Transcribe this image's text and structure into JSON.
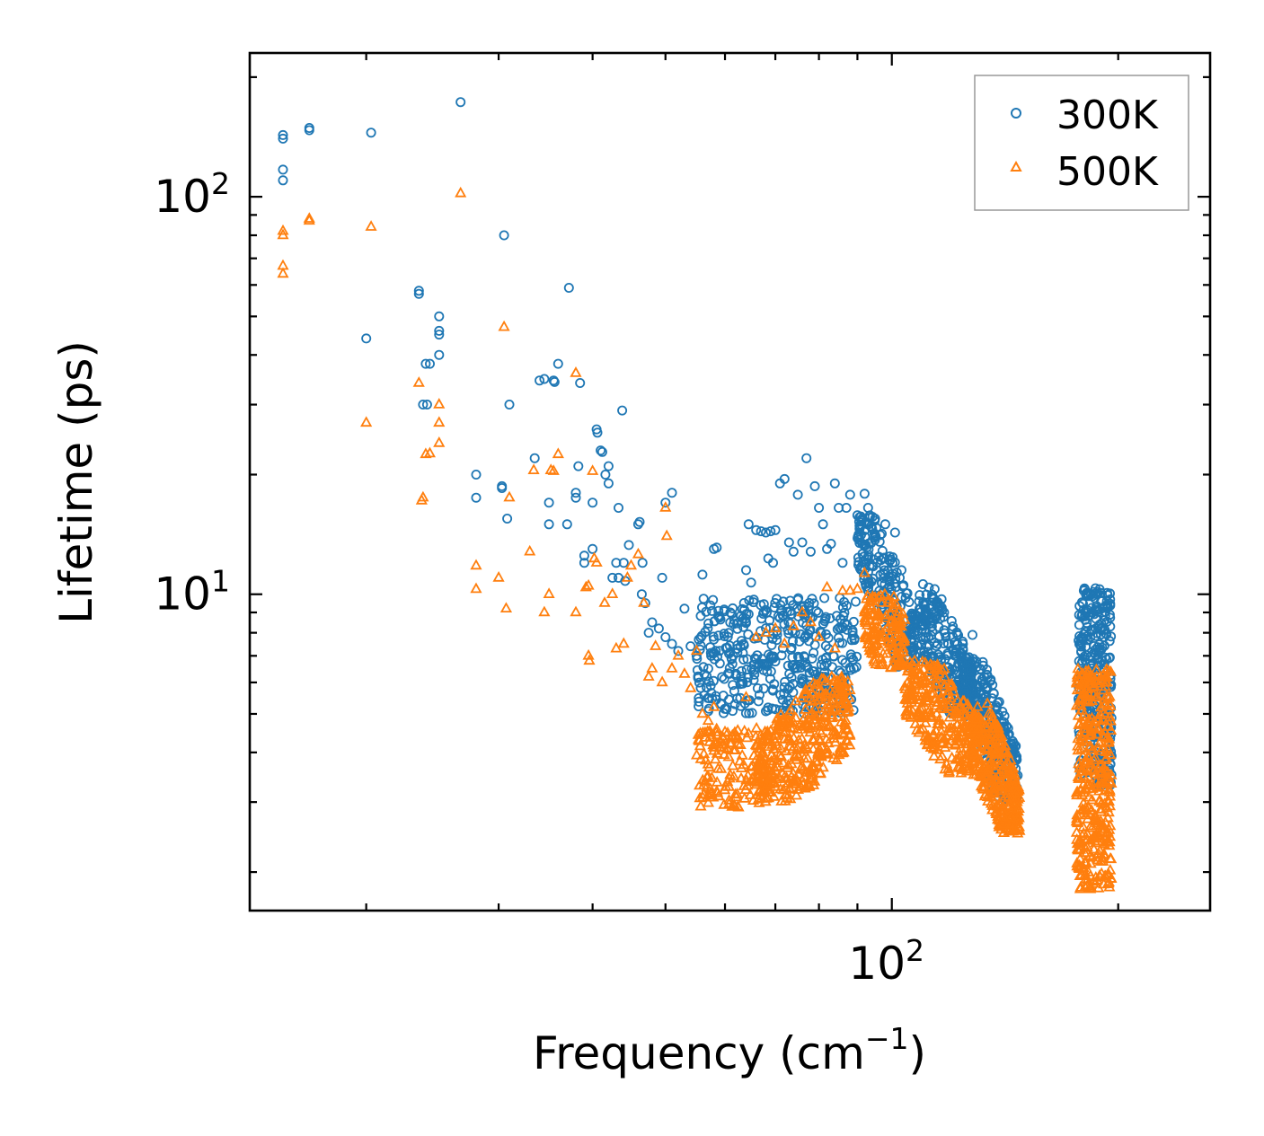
{
  "chart_data": {
    "type": "scatter",
    "xscale": "log",
    "yscale": "log",
    "xlim": [
      14,
      265
    ],
    "ylim": [
      1.6,
      230
    ],
    "xlabel_main": "Frequency (cm",
    "xlabel_sup": "−1",
    "xlabel_close": ")",
    "ylabel": "Lifetime (ps)",
    "x_major_ticks": [
      {
        "value": 100,
        "base": "10",
        "exp": "2"
      }
    ],
    "y_major_ticks": [
      {
        "value": 10,
        "base": "10",
        "exp": "1"
      },
      {
        "value": 100,
        "base": "10",
        "exp": "2"
      }
    ],
    "legend_position": "top-right",
    "series": [
      {
        "name": "300K",
        "marker": "circle",
        "color": "#1f77b4",
        "anchors": [
          [
            15.5,
            140
          ],
          [
            15.5,
            143
          ],
          [
            15.5,
            117
          ],
          [
            15.5,
            110
          ],
          [
            16.8,
            147
          ],
          [
            16.8,
            149
          ],
          [
            20,
            44
          ],
          [
            20.3,
            145
          ],
          [
            23.5,
            57
          ],
          [
            23.5,
            58
          ],
          [
            24,
            38
          ],
          [
            24.3,
            38
          ],
          [
            23.8,
            30
          ],
          [
            24.1,
            30
          ],
          [
            25,
            50
          ],
          [
            25,
            45
          ],
          [
            25,
            46
          ],
          [
            25,
            40
          ],
          [
            26.7,
            173
          ],
          [
            28,
            20
          ],
          [
            28,
            17.5
          ],
          [
            30.3,
            18.5
          ],
          [
            30.3,
            18.7
          ],
          [
            30.5,
            80
          ],
          [
            30.8,
            15.5
          ],
          [
            31,
            30
          ],
          [
            33.5,
            22
          ],
          [
            34,
            34.5
          ],
          [
            34.5,
            34.8
          ],
          [
            35,
            15
          ],
          [
            35,
            17
          ],
          [
            35.5,
            34.5
          ],
          [
            35.6,
            34.2
          ],
          [
            36,
            38
          ],
          [
            37,
            15
          ],
          [
            37.2,
            59
          ],
          [
            38,
            18
          ],
          [
            38,
            17.5
          ],
          [
            38.3,
            21
          ],
          [
            38.5,
            34
          ],
          [
            39,
            12.5
          ],
          [
            39,
            12
          ],
          [
            40,
            13
          ],
          [
            40,
            17
          ],
          [
            40.5,
            26
          ],
          [
            40.6,
            25.5
          ],
          [
            41,
            23
          ],
          [
            41.2,
            22.8
          ],
          [
            41.6,
            20
          ],
          [
            42,
            21
          ],
          [
            42,
            19
          ],
          [
            42.5,
            11
          ],
          [
            43,
            12
          ],
          [
            43.3,
            16.5
          ],
          [
            43.3,
            11
          ],
          [
            43.8,
            29
          ],
          [
            44,
            12
          ],
          [
            44.2,
            10.8
          ],
          [
            44.7,
            13.3
          ],
          [
            46,
            15
          ],
          [
            46.2,
            15.2
          ],
          [
            46.6,
            12
          ],
          [
            46.5,
            10
          ],
          [
            47,
            9.5
          ],
          [
            47.5,
            8
          ],
          [
            48,
            8.5
          ],
          [
            49,
            8.2
          ],
          [
            49.5,
            11
          ],
          [
            50,
            7.8
          ],
          [
            50,
            17
          ],
          [
            51,
            18
          ],
          [
            51,
            7.5
          ],
          [
            52,
            7.2
          ],
          [
            53,
            9.2
          ],
          [
            54,
            7.4
          ],
          [
            55,
            7
          ],
          [
            56,
            11.2
          ],
          [
            57,
            6.5
          ],
          [
            57.5,
            7
          ],
          [
            58,
            13
          ],
          [
            58.5,
            13.1
          ],
          [
            59,
            8.8
          ],
          [
            61,
            9
          ],
          [
            61.5,
            7
          ],
          [
            63,
            6.2
          ],
          [
            63.5,
            7.5
          ],
          [
            64,
            11.5
          ],
          [
            64.5,
            15
          ],
          [
            65,
            10.7
          ],
          [
            66,
            14.5
          ],
          [
            67,
            14.4
          ],
          [
            68,
            14.3
          ],
          [
            68.5,
            12.3
          ],
          [
            69,
            14.4
          ],
          [
            69.5,
            12
          ],
          [
            70,
            14.5
          ],
          [
            71,
            19
          ],
          [
            72,
            19.5
          ],
          [
            73,
            13.5
          ],
          [
            74,
            12.8
          ],
          [
            75,
            17.8
          ],
          [
            76,
            13.5
          ],
          [
            77,
            22
          ],
          [
            78,
            12.8
          ],
          [
            79,
            18.7
          ],
          [
            80,
            16.5
          ],
          [
            81,
            15
          ],
          [
            82,
            13
          ],
          [
            83,
            13.4
          ],
          [
            84,
            19
          ],
          [
            85,
            16.5
          ],
          [
            86,
            12
          ],
          [
            87,
            16.5
          ],
          [
            88,
            17.8
          ],
          [
            90,
            15.8
          ],
          [
            92,
            17.9
          ],
          [
            93,
            16.5
          ],
          [
            95,
            15.5
          ],
          [
            98,
            15
          ],
          [
            101,
            14.3
          ],
          [
            103,
            11.5
          ],
          [
            110,
            10.6
          ],
          [
            112,
            10.4
          ],
          [
            114,
            10.3
          ],
          [
            116,
            9.3
          ],
          [
            118,
            7.8
          ],
          [
            122,
            7
          ],
          [
            124,
            6.7
          ],
          [
            128,
            7.9
          ],
          [
            133,
            5.3
          ],
          [
            135,
            4.9
          ],
          [
            137,
            4.6
          ],
          [
            140,
            4.2
          ],
          [
            145,
            4
          ],
          [
            147,
            3.5
          ]
        ],
        "clusters": [
          {
            "x": [
              55,
              90
            ],
            "y": [
              5.0,
              9.8
            ],
            "n": 420
          },
          {
            "x": [
              90,
              108
            ],
            "y": [
              6.5,
              16
            ],
            "n": 230,
            "trend": [
              16,
              6.5
            ]
          },
          {
            "x": [
              108,
              128
            ],
            "y": [
              5.0,
              10
            ],
            "n": 240,
            "trend": [
              10,
              5.0
            ]
          },
          {
            "x": [
              124,
              147
            ],
            "y": [
              3.0,
              7
            ],
            "n": 280,
            "trend": [
              7,
              3.0
            ]
          },
          {
            "x": [
              177,
              196
            ],
            "y": [
              3.3,
              10.4
            ],
            "n": 300
          }
        ]
      },
      {
        "name": "500K",
        "marker": "triangle",
        "color": "#ff7f0e",
        "anchors": [
          [
            15.5,
            82
          ],
          [
            15.5,
            80
          ],
          [
            15.5,
            67
          ],
          [
            15.5,
            64
          ],
          [
            16.8,
            87
          ],
          [
            16.8,
            88
          ],
          [
            20,
            27
          ],
          [
            20.3,
            84
          ],
          [
            23.5,
            34
          ],
          [
            23.7,
            17.2
          ],
          [
            23.8,
            17.5
          ],
          [
            24,
            22.5
          ],
          [
            24.3,
            22.6
          ],
          [
            25,
            30
          ],
          [
            25,
            27
          ],
          [
            25,
            24
          ],
          [
            26.7,
            102
          ],
          [
            28,
            10.3
          ],
          [
            28,
            11.8
          ],
          [
            30,
            11
          ],
          [
            30.5,
            47
          ],
          [
            30.7,
            9.2
          ],
          [
            31,
            17.5
          ],
          [
            33,
            12.8
          ],
          [
            33.4,
            20.5
          ],
          [
            34.5,
            9
          ],
          [
            35,
            10
          ],
          [
            35.2,
            20.5
          ],
          [
            35.5,
            20.4
          ],
          [
            36,
            22.5
          ],
          [
            38,
            9
          ],
          [
            38,
            36
          ],
          [
            39.2,
            10.4
          ],
          [
            39.5,
            10.5
          ],
          [
            39.5,
            7
          ],
          [
            39.6,
            6.8
          ],
          [
            40,
            20.4
          ],
          [
            40.2,
            12.3
          ],
          [
            40.5,
            12
          ],
          [
            41.5,
            9.5
          ],
          [
            42.5,
            10
          ],
          [
            43,
            7.3
          ],
          [
            44,
            7.5
          ],
          [
            44.5,
            11
          ],
          [
            45,
            11.8
          ],
          [
            46,
            12.6
          ],
          [
            46.8,
            9.5
          ],
          [
            47.5,
            6.2
          ],
          [
            48,
            6.5
          ],
          [
            48.5,
            7.4
          ],
          [
            49.5,
            6
          ],
          [
            50,
            16.5
          ],
          [
            50.2,
            14
          ],
          [
            51,
            6.5
          ],
          [
            52,
            7
          ],
          [
            53,
            6.3
          ],
          [
            54,
            5.8
          ],
          [
            55,
            7.2
          ],
          [
            56,
            5
          ],
          [
            57,
            4.8
          ],
          [
            58,
            5.2
          ],
          [
            60,
            4.5
          ],
          [
            62,
            4.4
          ],
          [
            64,
            5.5
          ],
          [
            66,
            7.8
          ],
          [
            68,
            8
          ],
          [
            70,
            8.2
          ],
          [
            72,
            7.5
          ],
          [
            74,
            8.3
          ],
          [
            76,
            9
          ],
          [
            78,
            8.5
          ],
          [
            80,
            7.8
          ],
          [
            82,
            10.4
          ],
          [
            84,
            7.3
          ],
          [
            86,
            10.2
          ],
          [
            88,
            10.2
          ],
          [
            90,
            10.3
          ],
          [
            92,
            11.3
          ],
          [
            95,
            9.8
          ],
          [
            97,
            9.5
          ],
          [
            100,
            8.5
          ],
          [
            103,
            6.8
          ],
          [
            106,
            5.4
          ],
          [
            110,
            4.9
          ],
          [
            113,
            5.6
          ],
          [
            115,
            4.7
          ],
          [
            118,
            4.4
          ],
          [
            120,
            4.6
          ],
          [
            124,
            4.4
          ],
          [
            130,
            5.2
          ],
          [
            134,
            5.3
          ],
          [
            137,
            4.6
          ],
          [
            140,
            3.6
          ],
          [
            145,
            2.7
          ],
          [
            147,
            2.5
          ]
        ],
        "clusters": [
          {
            "x": [
              55,
              68
            ],
            "y": [
              2.9,
              4.6
            ],
            "n": 140
          },
          {
            "x": [
              66,
              88
            ],
            "y": [
              3.0,
              6.2
            ],
            "n": 380,
            "trend": [
              3.2,
              5.5
            ]
          },
          {
            "x": [
              92,
              104
            ],
            "y": [
              6.5,
              10
            ],
            "n": 150,
            "trend": [
              10,
              6.5
            ]
          },
          {
            "x": [
              104,
              130
            ],
            "y": [
              3.5,
              6.8
            ],
            "n": 280,
            "trend": [
              6.8,
              3.6
            ]
          },
          {
            "x": [
              128,
              148
            ],
            "y": [
              2.5,
              5.0
            ],
            "n": 320,
            "trend": [
              5.0,
              2.5
            ]
          },
          {
            "x": [
              176,
              196
            ],
            "y": [
              1.8,
              6.5
            ],
            "n": 360
          }
        ]
      }
    ]
  }
}
